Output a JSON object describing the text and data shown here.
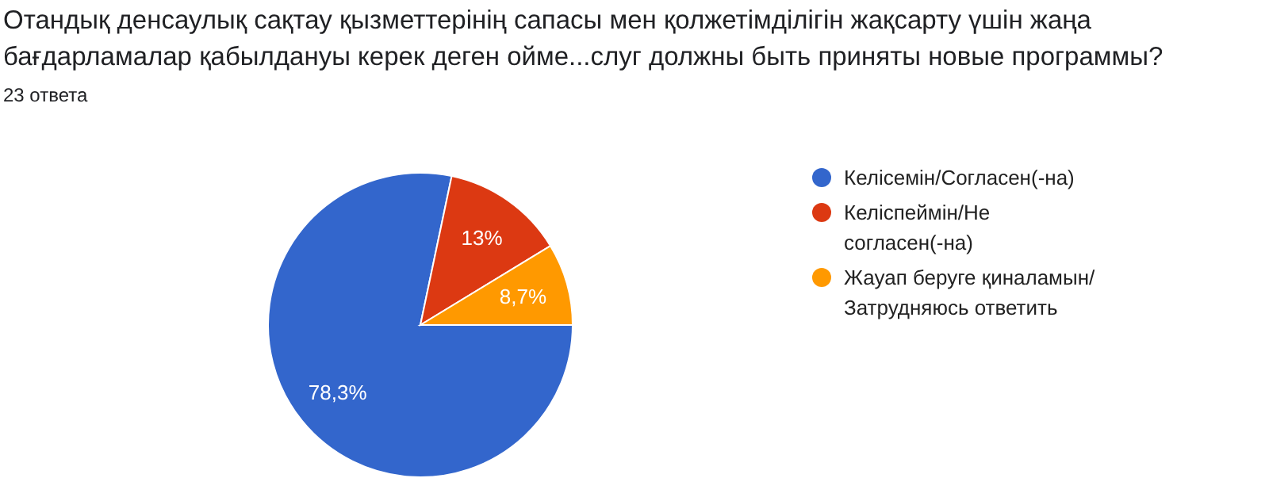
{
  "chart_data": {
    "type": "pie",
    "title": "Отандық денсаулық сақтау қызметтерінің сапасы мен қолжетімділігін жақсарту үшін жаңа бағдарламалар қабылдануы керек деген ойме...слуг должны быть приняты новые программы?",
    "subtitle": "23 ответа",
    "categories": [
      "Келісемін/Согласен(-на)",
      "Келіспеймін/Не согласен(-на)",
      "Жауап беруге қиналамын/Затрудняюсь ответить"
    ],
    "values": [
      78.3,
      13,
      8.7
    ],
    "colors": [
      "#3366cc",
      "#dc3912",
      "#ff9900"
    ],
    "value_labels": [
      "78,3%",
      "13%",
      "8,7%"
    ],
    "legend": "right"
  }
}
